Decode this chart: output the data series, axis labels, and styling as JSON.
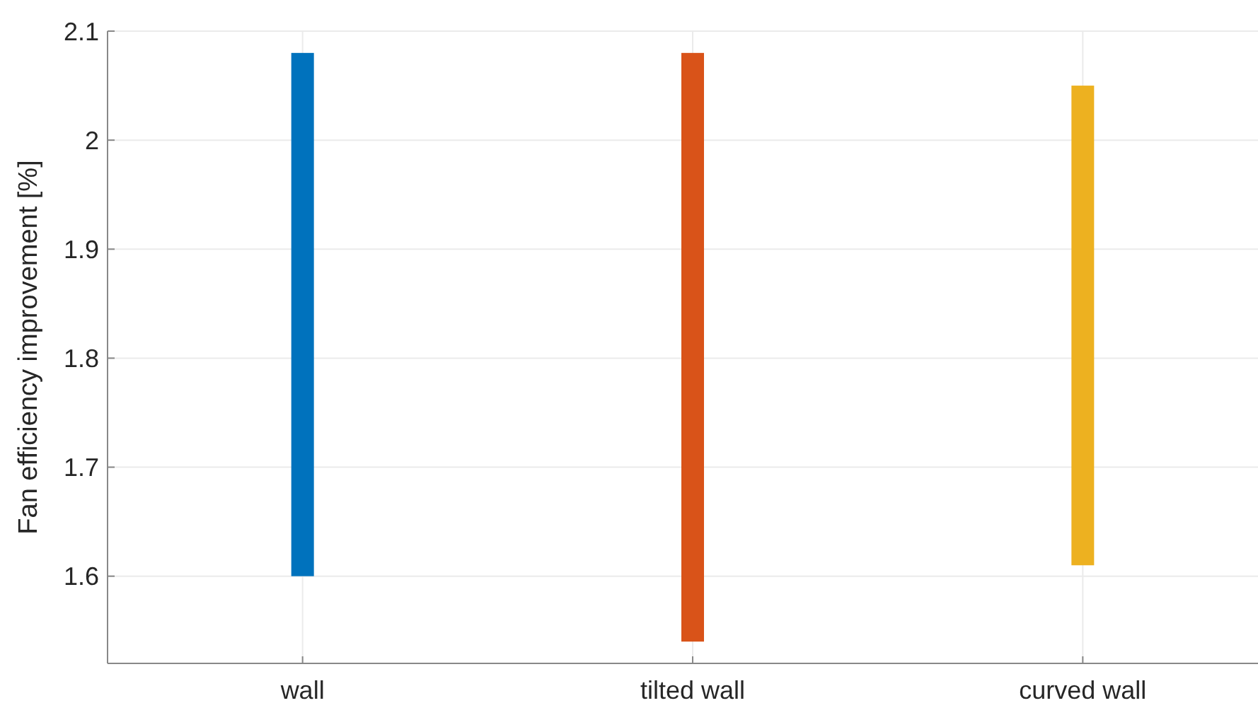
{
  "chart_data": {
    "type": "bar",
    "ylabel": "Fan efficiency improvement [%]",
    "categories": [
      "wall",
      "tilted wall",
      "curved wall"
    ],
    "base": [
      1.6,
      1.54,
      1.61
    ],
    "values": [
      0.48,
      0.54,
      0.44
    ],
    "colors": [
      "#0072bd",
      "#d95319",
      "#edb120"
    ],
    "ylim": [
      1.52,
      2.1
    ],
    "yticks": [
      1.6,
      1.7,
      1.8,
      1.9,
      2,
      2.1
    ],
    "grid": true
  }
}
